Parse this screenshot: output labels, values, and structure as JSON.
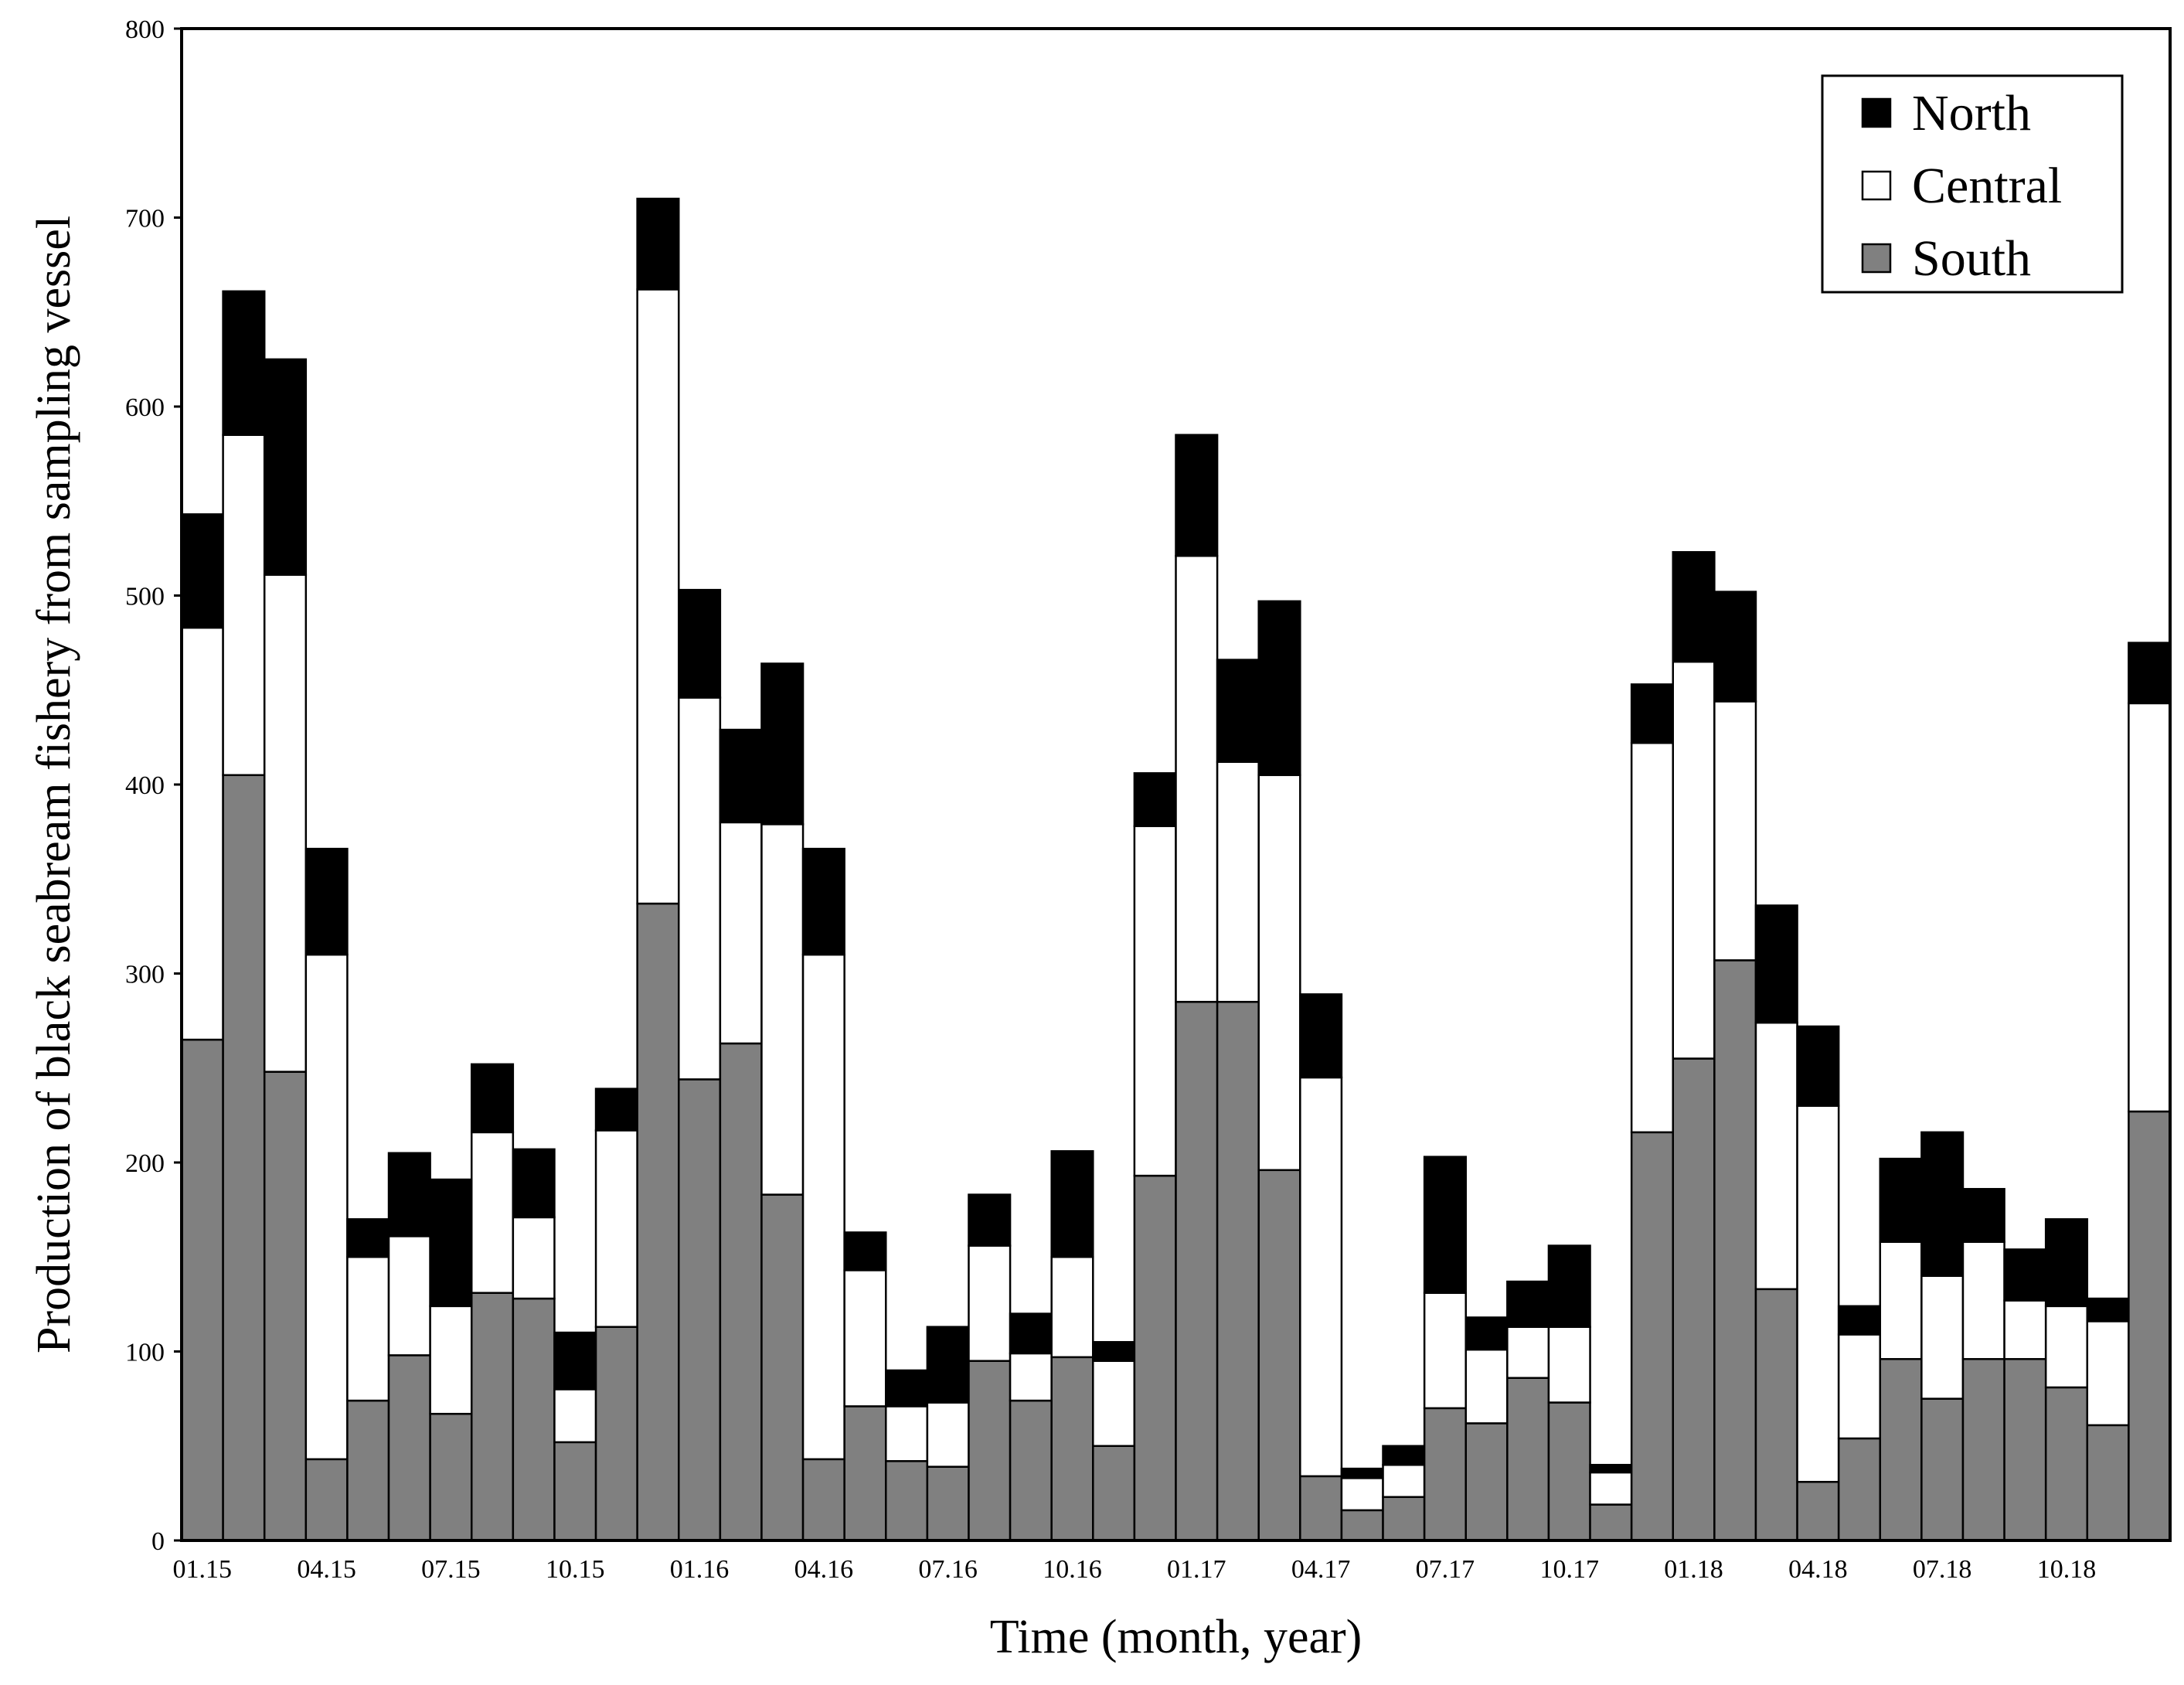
{
  "chart_data": {
    "type": "bar",
    "stacked": true,
    "xlabel": "Time (month, year)",
    "ylabel": "Production of black seabream fishery from sampling vessel",
    "ylim": [
      0,
      800
    ],
    "yticks": [
      0,
      100,
      200,
      300,
      400,
      500,
      600,
      700,
      800
    ],
    "grid": false,
    "legend_position": "top-right",
    "categories": [
      "01.15",
      "02.15",
      "03.15",
      "04.15",
      "05.15",
      "06.15",
      "07.15",
      "08.15",
      "09.15",
      "10.15",
      "11.15",
      "12.15",
      "01.16",
      "02.16",
      "03.16",
      "04.16",
      "05.16",
      "06.16",
      "07.16",
      "08.16",
      "09.16",
      "10.16",
      "11.16",
      "12.16",
      "01.17",
      "02.17",
      "03.17",
      "04.17",
      "05.17",
      "06.17",
      "07.17",
      "08.17",
      "09.17",
      "10.17",
      "11.17",
      "12.17",
      "01.18",
      "02.18",
      "03.18",
      "04.18",
      "05.18",
      "06.18",
      "07.18",
      "08.18",
      "09.18",
      "10.18",
      "11.18",
      "12.18"
    ],
    "tick_labels": [
      "01.15",
      "04.15",
      "07.15",
      "10.15",
      "01.16",
      "04.16",
      "07.16",
      "10.16",
      "01.17",
      "04.17",
      "07.17",
      "10.17",
      "01.18",
      "04.18",
      "07.18",
      "10.18"
    ],
    "series": [
      {
        "name": "South",
        "color": "#808080",
        "values": [
          265,
          405,
          248,
          43,
          74,
          98,
          67,
          131,
          128,
          52,
          113,
          337,
          244,
          263,
          183,
          43,
          71,
          42,
          39,
          95,
          74,
          97,
          50,
          193,
          285,
          285,
          196,
          34,
          16,
          23,
          70,
          62,
          86,
          73,
          19,
          216,
          255,
          307,
          133,
          31,
          54,
          96,
          75,
          96,
          96,
          81,
          61,
          227
        ]
      },
      {
        "name": "Central",
        "color": "#ffffff",
        "values": [
          218,
          180,
          263,
          267,
          76,
          63,
          57,
          85,
          43,
          28,
          104,
          325,
          202,
          117,
          196,
          267,
          72,
          29,
          34,
          61,
          25,
          53,
          45,
          185,
          236,
          127,
          209,
          211,
          17,
          17,
          61,
          39,
          27,
          40,
          17,
          206,
          210,
          137,
          141,
          199,
          55,
          62,
          65,
          62,
          31,
          43,
          55,
          216
        ]
      },
      {
        "name": "North",
        "color": "#000000",
        "values": [
          60,
          76,
          114,
          56,
          20,
          44,
          67,
          36,
          36,
          30,
          22,
          48,
          57,
          49,
          85,
          56,
          20,
          19,
          40,
          27,
          21,
          56,
          10,
          28,
          64,
          54,
          92,
          44,
          5,
          10,
          72,
          17,
          24,
          43,
          4,
          31,
          58,
          58,
          62,
          42,
          15,
          44,
          76,
          28,
          27,
          46,
          12,
          32
        ]
      }
    ]
  }
}
